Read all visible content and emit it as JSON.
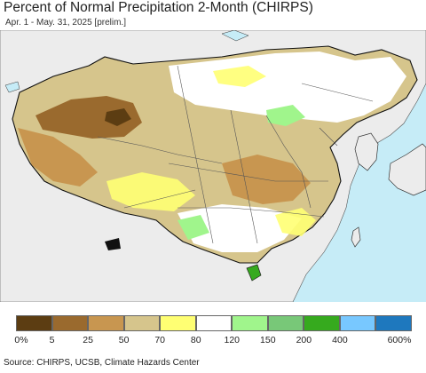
{
  "title": "Percent of Normal Precipitation 2-Month (CHIRPS)",
  "subtitle": "Apr. 1 - May. 31, 2025 [prelim.]",
  "source": "Source: CHIRPS, UCSB, Climate Hazards Center",
  "legend": {
    "colors": [
      "#5c3d12",
      "#9a6a2e",
      "#c89650",
      "#d6c58c",
      "#ffff73",
      "#ffffff",
      "#a0f58c",
      "#78c878",
      "#36aa1e",
      "#78c8ff",
      "#1e78be"
    ],
    "labels": [
      "0%",
      "5",
      "25",
      "50",
      "70",
      "80",
      "120",
      "150",
      "200",
      "400",
      "600%"
    ]
  },
  "map_colors": {
    "ocean": "#c6ecf7",
    "land_outside": "#ececec",
    "border": "#222222",
    "province": "#555555"
  }
}
